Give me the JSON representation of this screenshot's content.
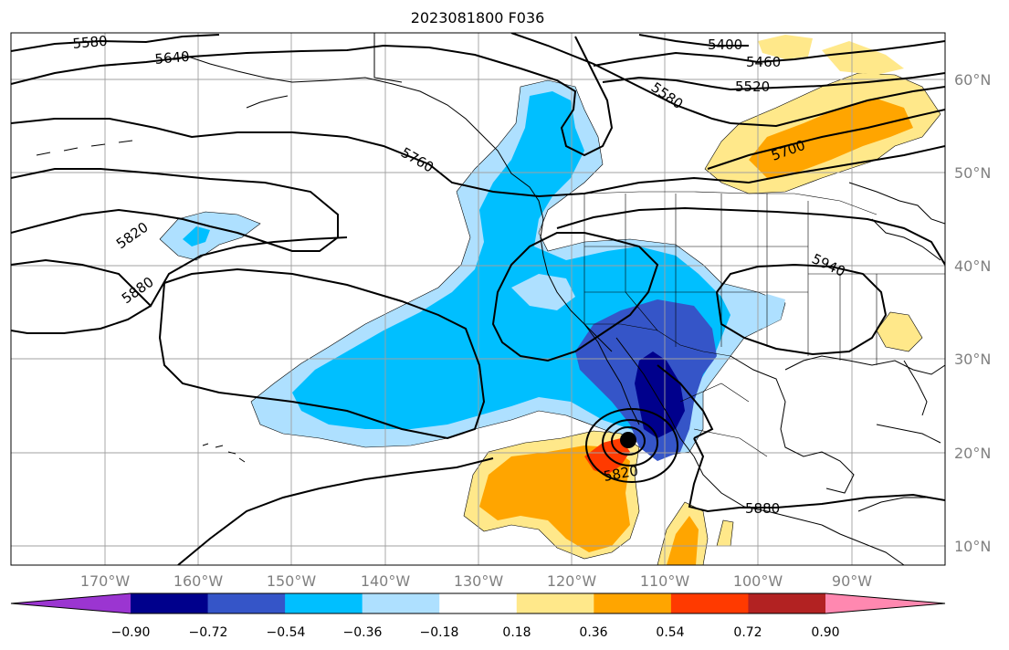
{
  "title": "2023081800 F036",
  "lat_labels": [
    "60°N",
    "50°N",
    "40°N",
    "30°N",
    "20°N",
    "10°N"
  ],
  "lon_labels": [
    "170°W",
    "160°W",
    "150°W",
    "140°W",
    "130°W",
    "120°W",
    "110°W",
    "100°W",
    "90°W"
  ],
  "colorbar": {
    "ticks": [
      "−0.90",
      "−0.72",
      "−0.54",
      "−0.36",
      "−0.18",
      "0.18",
      "0.36",
      "0.54",
      "0.72",
      "0.90"
    ],
    "colors": [
      "#9b35d1",
      "#00008c",
      "#3555c8",
      "#00bfff",
      "#aee0ff",
      "#ffffff",
      "#ffe88a",
      "#ffa500",
      "#ff3a00",
      "#b22222",
      "#ff88b0"
    ]
  },
  "contour_labels": [
    {
      "id": "c5580a",
      "text": "5580"
    },
    {
      "id": "c5640",
      "text": "5640"
    },
    {
      "id": "c5400",
      "text": "5400"
    },
    {
      "id": "c5460",
      "text": "5460"
    },
    {
      "id": "c5520",
      "text": "5520"
    },
    {
      "id": "c5580b",
      "text": "5580"
    },
    {
      "id": "c5700",
      "text": "5700"
    },
    {
      "id": "c5760",
      "text": "5760"
    },
    {
      "id": "c5820a",
      "text": "5820"
    },
    {
      "id": "c5880a",
      "text": "5880"
    },
    {
      "id": "c5940",
      "text": "5940"
    },
    {
      "id": "c5820b",
      "text": "5820"
    },
    {
      "id": "c5880b",
      "text": "5880"
    }
  ]
}
